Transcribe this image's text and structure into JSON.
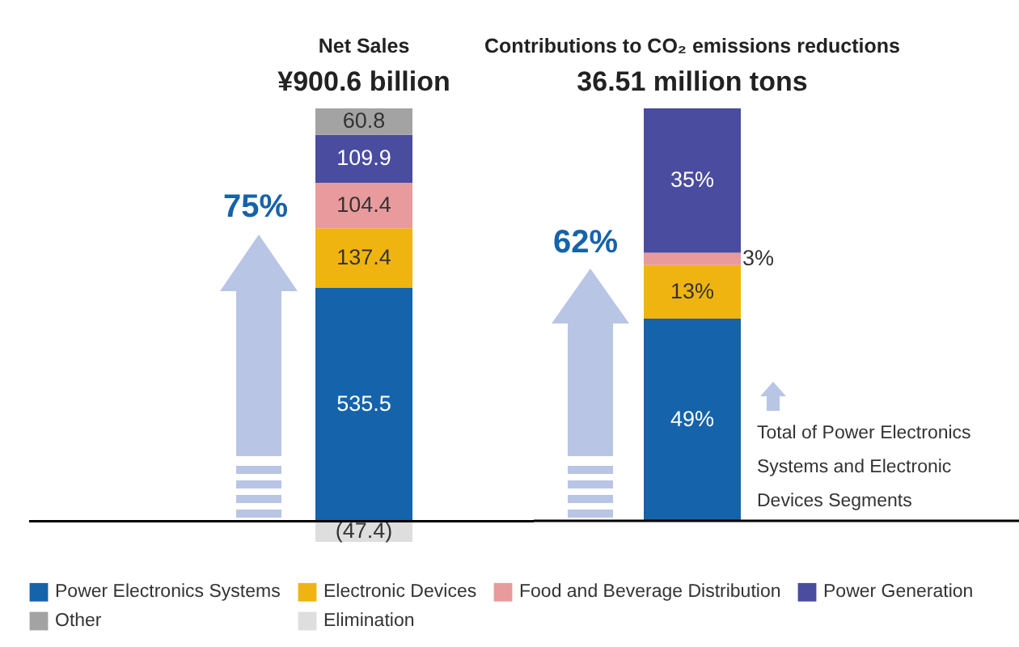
{
  "chart_data": [
    {
      "type": "bar",
      "title": "Net Sales",
      "subtitle": "¥900.6 billion",
      "categories": [
        null
      ],
      "stacked": true,
      "tick_labels": false,
      "legend": "bottom",
      "series": [
        {
          "name": "Power Electronics Systems",
          "color": "#1563ab",
          "values": [
            535.5
          ],
          "value_labels": [
            "535.5"
          ]
        },
        {
          "name": "Electronic Devices",
          "color": "#f0b411",
          "values": [
            137.4
          ],
          "value_labels": [
            "137.4"
          ]
        },
        {
          "name": "Food and Beverage Distribution",
          "color": "#e89a9c",
          "values": [
            104.4
          ],
          "value_labels": [
            "104.4"
          ]
        },
        {
          "name": "Power Generation",
          "color": "#4a4c9f",
          "values": [
            109.9
          ],
          "value_labels": [
            "109.9"
          ]
        },
        {
          "name": "Other",
          "color": "#a3a3a3",
          "values": [
            60.8
          ],
          "value_labels": [
            "60.8"
          ]
        },
        {
          "name": "Elimination",
          "color": "#dedede",
          "values": [
            -47.4
          ],
          "value_labels": [
            "(47.4)"
          ]
        }
      ],
      "ref_lines": [
        {
          "axis": "y",
          "value": 0,
          "color": "#000000"
        }
      ],
      "annotations": [
        "75%"
      ]
    },
    {
      "type": "bar",
      "title": "Contributions to CO₂ emissions reductions",
      "subtitle": "36.51 million tons",
      "categories": [
        null
      ],
      "stacked": true,
      "tick_labels": false,
      "series": [
        {
          "color": "#1563ab",
          "values": [
            49
          ],
          "value_labels": [
            "49%"
          ]
        },
        {
          "color": "#f0b411",
          "values": [
            13
          ],
          "value_labels": [
            "13%"
          ]
        },
        {
          "color": "#e89a9c",
          "values": [
            3
          ],
          "value_labels": [
            "3%"
          ]
        },
        {
          "color": "#4a4c9f",
          "values": [
            35
          ],
          "value_labels": [
            "35%"
          ]
        }
      ],
      "ref_lines": [
        {
          "axis": "y",
          "value": 0,
          "color": "#000000"
        }
      ],
      "annotations": [
        "62%",
        "Total of Power Electronics Systems and Electronic Devices Segments"
      ]
    }
  ]
}
